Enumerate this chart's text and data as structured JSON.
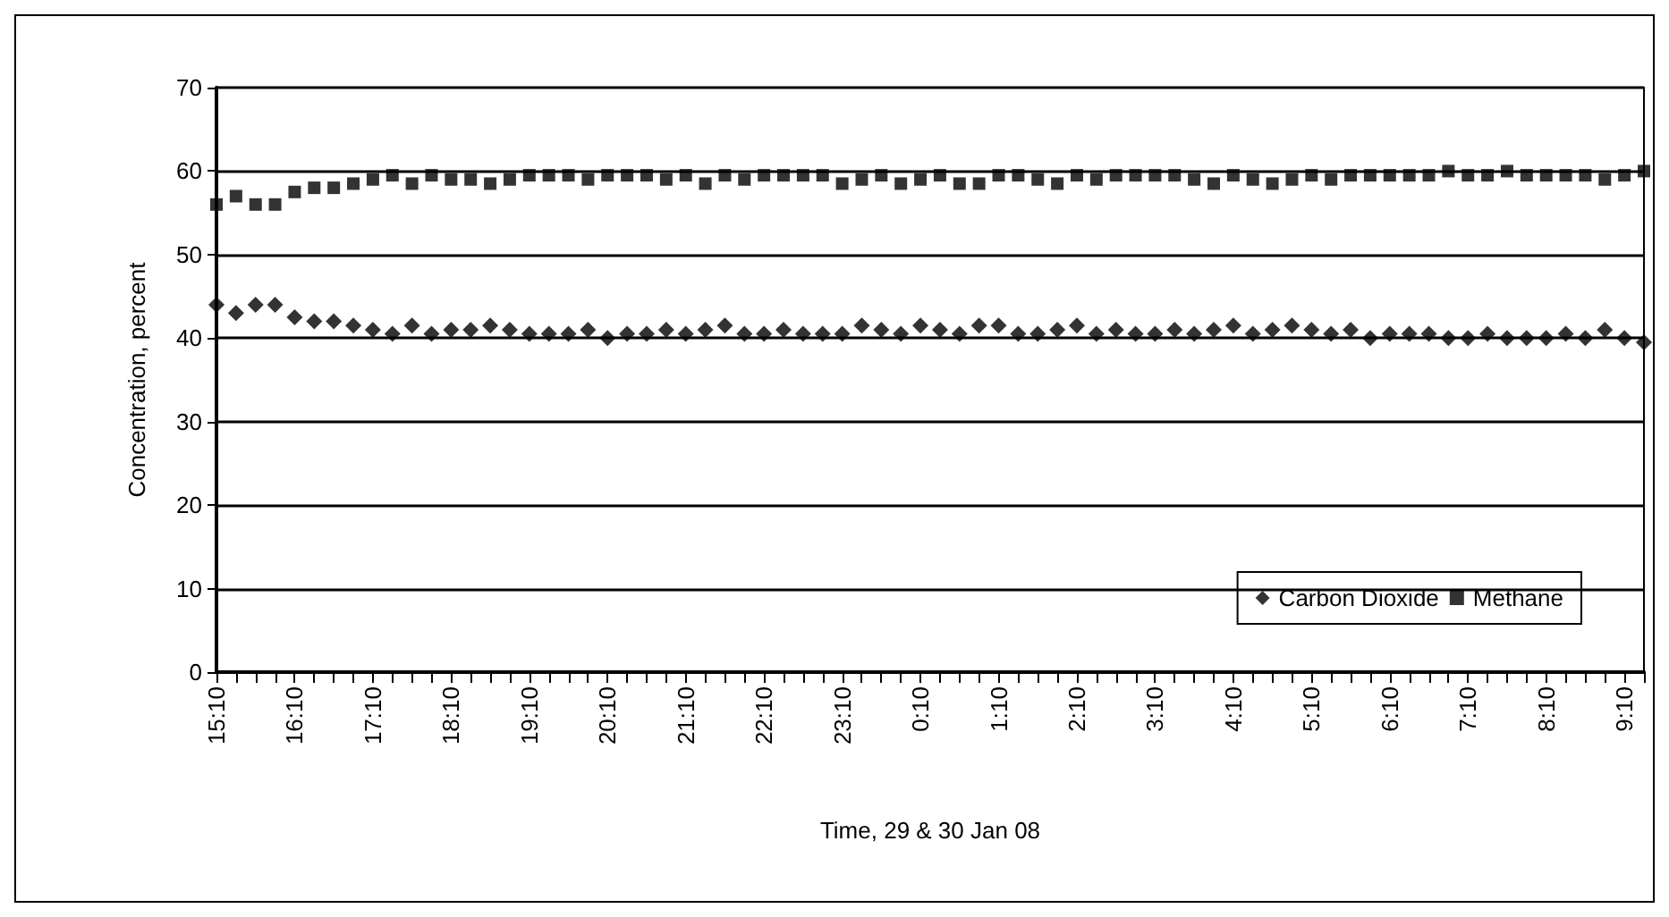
{
  "chart_data": {
    "type": "scatter",
    "xlabel": "Time, 29 & 30 Jan 08",
    "ylabel": "Concentration, percent",
    "categories": [
      "15:10",
      null,
      null,
      null,
      "16:10",
      null,
      null,
      null,
      "17:10",
      null,
      null,
      null,
      "18:10",
      null,
      null,
      null,
      "19:10",
      null,
      null,
      null,
      "20:10",
      null,
      null,
      null,
      "21:10",
      null,
      null,
      null,
      "22:10",
      null,
      null,
      null,
      "23:10",
      null,
      null,
      null,
      "0:10",
      null,
      null,
      null,
      "1:10",
      null,
      null,
      null,
      "2:10",
      null,
      null,
      null,
      "3:10",
      null,
      null,
      null,
      "4:10",
      null,
      null,
      null,
      "5:10",
      null,
      null,
      null,
      "6:10",
      null,
      null,
      null,
      "7:10",
      null,
      null,
      null,
      "8:10",
      null,
      null,
      null,
      "9:10",
      null
    ],
    "series": [
      {
        "name": "Carbon Dioxide",
        "color": "#000000",
        "marker": "diamond",
        "values": [
          44,
          43,
          44,
          44,
          42.5,
          42,
          42,
          41.5,
          41,
          40.5,
          41.5,
          40.5,
          41,
          41,
          41.5,
          41,
          40.5,
          40.5,
          40.5,
          41,
          40,
          40.5,
          40.5,
          41,
          40.5,
          41,
          41.5,
          40.5,
          40.5,
          41,
          40.5,
          40.5,
          40.5,
          41.5,
          41,
          40.5,
          41.5,
          41,
          40.5,
          41.5,
          41.5,
          40.5,
          40.5,
          41,
          41.5,
          40.5,
          41,
          40.5,
          40.5,
          41,
          40.5,
          41,
          41.5,
          40.5,
          41,
          41.5,
          41,
          40.5,
          41,
          40,
          40.5,
          40.5,
          40.5,
          40,
          40,
          40.5,
          40,
          40,
          40,
          40.5,
          40,
          41,
          40,
          39.5
        ]
      },
      {
        "name": "Methane",
        "color": "#000000",
        "marker": "square",
        "values": [
          56,
          57,
          56,
          56,
          57.5,
          58,
          58,
          58.5,
          59,
          59.5,
          58.5,
          59.5,
          59,
          59,
          58.5,
          59,
          59.5,
          59.5,
          59.5,
          59,
          59.5,
          59.5,
          59.5,
          59,
          59.5,
          58.5,
          59.5,
          59,
          59.5,
          59.5,
          59.5,
          59.5,
          58.5,
          59,
          59.5,
          58.5,
          59,
          59.5,
          58.5,
          58.5,
          59.5,
          59.5,
          59,
          58.5,
          59.5,
          59,
          59.5,
          59.5,
          59.5,
          59.5,
          59,
          58.5,
          59.5,
          59,
          58.5,
          59,
          59.5,
          59,
          59.5,
          59.5,
          59.5,
          59.5,
          59.5,
          60,
          59.5,
          59.5,
          60,
          59.5,
          59.5,
          59.5,
          59.5,
          59,
          59.5,
          60
        ]
      }
    ],
    "ylim": [
      0,
      70
    ],
    "yticks": [
      0,
      10,
      20,
      30,
      40,
      50,
      60,
      70
    ],
    "grid": "y",
    "legend": "bottom right"
  }
}
